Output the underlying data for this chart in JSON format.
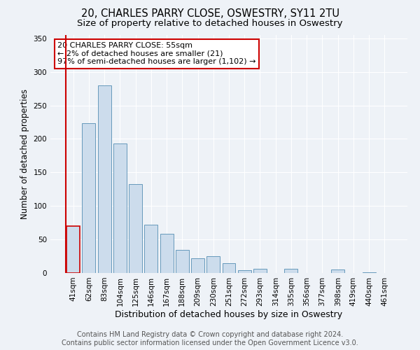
{
  "title": "20, CHARLES PARRY CLOSE, OSWESTRY, SY11 2TU",
  "subtitle": "Size of property relative to detached houses in Oswestry",
  "xlabel": "Distribution of detached houses by size in Oswestry",
  "ylabel": "Number of detached properties",
  "categories": [
    "41sqm",
    "62sqm",
    "83sqm",
    "104sqm",
    "125sqm",
    "146sqm",
    "167sqm",
    "188sqm",
    "209sqm",
    "230sqm",
    "251sqm",
    "272sqm",
    "293sqm",
    "314sqm",
    "335sqm",
    "356sqm",
    "377sqm",
    "398sqm",
    "419sqm",
    "440sqm",
    "461sqm"
  ],
  "values": [
    70,
    223,
    280,
    193,
    133,
    72,
    58,
    34,
    22,
    25,
    15,
    4,
    6,
    0,
    6,
    0,
    0,
    5,
    0,
    1,
    0
  ],
  "bar_color": "#ccdcec",
  "bar_edge_color": "#6699bb",
  "highlight_bar_index": 0,
  "highlight_bar_edge_color": "#cc0000",
  "ylim": [
    0,
    355
  ],
  "yticks": [
    0,
    50,
    100,
    150,
    200,
    250,
    300,
    350
  ],
  "annotation_box_text": "20 CHARLES PARRY CLOSE: 55sqm\n← 2% of detached houses are smaller (21)\n97% of semi-detached houses are larger (1,102) →",
  "annotation_box_color": "#ffffff",
  "annotation_box_edge_color": "#cc0000",
  "footer_line1": "Contains HM Land Registry data © Crown copyright and database right 2024.",
  "footer_line2": "Contains public sector information licensed under the Open Government Licence v3.0.",
  "background_color": "#eef2f7",
  "grid_color": "#ffffff",
  "title_fontsize": 10.5,
  "subtitle_fontsize": 9.5,
  "xlabel_fontsize": 9,
  "ylabel_fontsize": 8.5,
  "tick_fontsize": 7.5,
  "footer_fontsize": 7,
  "annotation_fontsize": 8
}
